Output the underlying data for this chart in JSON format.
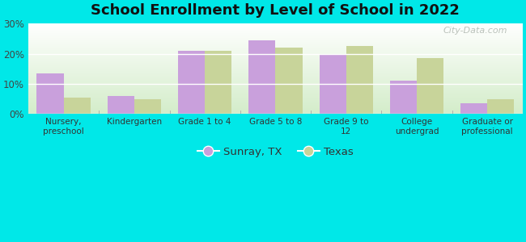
{
  "title": "School Enrollment by Level of School in 2022",
  "categories": [
    "Nursery,\npreschool",
    "Kindergarten",
    "Grade 1 to 4",
    "Grade 5 to 8",
    "Grade 9 to\n12",
    "College\nundergrad",
    "Graduate or\nprofessional"
  ],
  "sunray_values": [
    13.5,
    6.0,
    21.0,
    24.5,
    20.0,
    11.0,
    3.5
  ],
  "texas_values": [
    5.5,
    5.0,
    21.0,
    22.0,
    22.5,
    18.5,
    5.0
  ],
  "sunray_color": "#c9a0dc",
  "texas_color": "#c8d49a",
  "background_color": "#00e8e8",
  "plot_bg_top": "#ffffff",
  "plot_bg_bottom": "#d4edca",
  "ylim": [
    0,
    30
  ],
  "yticks": [
    0,
    10,
    20,
    30
  ],
  "legend_labels": [
    "Sunray, TX",
    "Texas"
  ],
  "watermark": "City-Data.com",
  "bar_width": 0.38,
  "title_fontsize": 13
}
